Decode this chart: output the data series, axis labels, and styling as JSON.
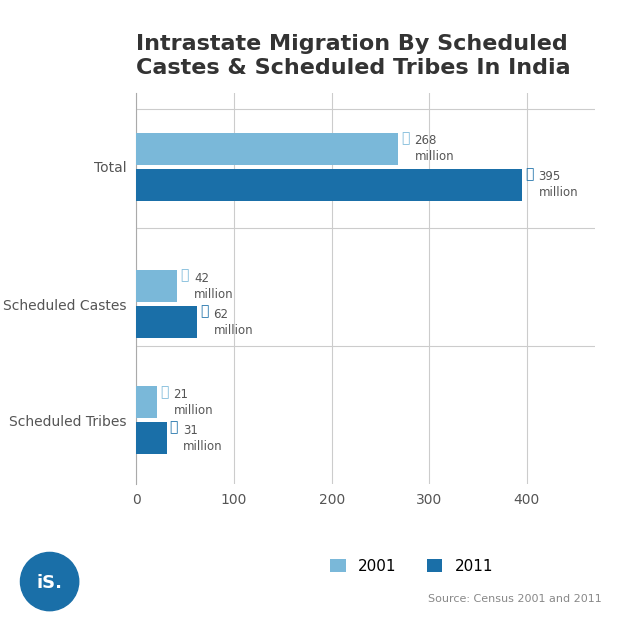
{
  "title": "Intrastate Migration By Scheduled\nCastes & Scheduled Tribes In India",
  "categories": [
    "Scheduled Tribes",
    "Scheduled Castes",
    "Total"
  ],
  "values_2001": [
    21,
    42,
    268
  ],
  "values_2011": [
    31,
    62,
    395
  ],
  "color_2001": "#7ab8d9",
  "color_2011": "#1a6fa8",
  "labels_2001": [
    "21\nmillion",
    "42\nmillion",
    "268\nmillion"
  ],
  "labels_2011": [
    "31\nmillion",
    "62\nmillion",
    "395\nmillion"
  ],
  "xticks": [
    0,
    100,
    200,
    300,
    400
  ],
  "xlim": [
    0,
    470
  ],
  "source_text": "Source: Census 2001 and 2011",
  "legend_2001": "2001",
  "legend_2011": "2011",
  "background_color": "#ffffff",
  "text_color": "#555555",
  "title_color": "#333333"
}
